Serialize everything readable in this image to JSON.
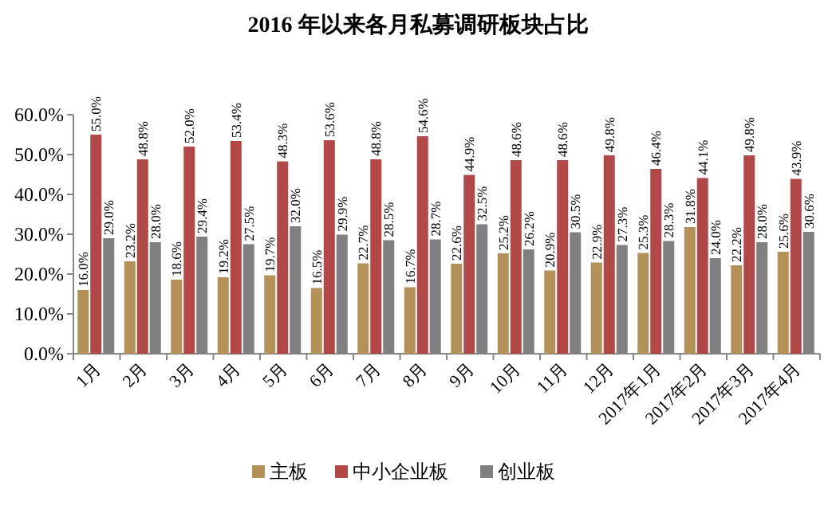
{
  "chart_data": {
    "type": "bar",
    "title": "2016 年以来各月私募调研板块占比",
    "categories": [
      "1月",
      "2月",
      "3月",
      "4月",
      "5月",
      "6月",
      "7月",
      "8月",
      "9月",
      "10月",
      "11月",
      "12月",
      "2017年1月",
      "2017年2月",
      "2017年3月",
      "2017年4月"
    ],
    "series": [
      {
        "name": "主板",
        "color": "#b5915a",
        "values": [
          16.0,
          23.2,
          18.6,
          19.2,
          19.7,
          16.5,
          22.7,
          16.7,
          22.6,
          25.2,
          20.9,
          22.9,
          25.3,
          31.8,
          22.2,
          25.6
        ],
        "value_labels": [
          "16.0%",
          "23.2%",
          "18.6%",
          "19.2%",
          "19.7%",
          "16.5%",
          "22.7%",
          "16.7%",
          "22.6%",
          "25.2%",
          "20.9%",
          "22.9%",
          "25.3%",
          "31.8%",
          "22.2%",
          "25.6%"
        ]
      },
      {
        "name": "中小企业板",
        "color": "#b04848",
        "values": [
          55.0,
          48.8,
          52.0,
          53.4,
          48.3,
          53.6,
          48.8,
          54.6,
          44.9,
          48.6,
          48.6,
          49.8,
          46.4,
          44.1,
          49.8,
          43.9
        ],
        "value_labels": [
          "55.0%",
          "48.8%",
          "52.0%",
          "53.4%",
          "48.3%",
          "53.6%",
          "48.8%",
          "54.6%",
          "44.9%",
          "48.6%",
          "48.6%",
          "49.8%",
          "46.4%",
          "44.1%",
          "49.8%",
          "43.9%"
        ]
      },
      {
        "name": "创业板",
        "color": "#808080",
        "values": [
          29.0,
          28.0,
          29.4,
          27.5,
          32.0,
          29.9,
          28.5,
          28.7,
          32.5,
          26.2,
          30.5,
          27.3,
          28.3,
          24.0,
          28.0,
          30.6
        ],
        "value_labels": [
          "29.0%",
          "28.0%",
          "29.4%",
          "27.5%",
          "32.0%",
          "29.9%",
          "28.5%",
          "28.7%",
          "32.5%",
          "26.2%",
          "30.5%",
          "27.3%",
          "28.3%",
          "24.0%",
          "28.0%",
          "30.6%"
        ]
      }
    ],
    "ylim": [
      0,
      60
    ],
    "yticks": [
      {
        "value": 0,
        "label": "0.0%"
      },
      {
        "value": 10,
        "label": "10.0%"
      },
      {
        "value": 20,
        "label": "20.0%"
      },
      {
        "value": 30,
        "label": "30.0%"
      },
      {
        "value": 40,
        "label": "40.0%"
      },
      {
        "value": 50,
        "label": "50.0%"
      },
      {
        "value": 60,
        "label": "60.0%"
      }
    ],
    "grid": false,
    "legend": "bottom"
  }
}
